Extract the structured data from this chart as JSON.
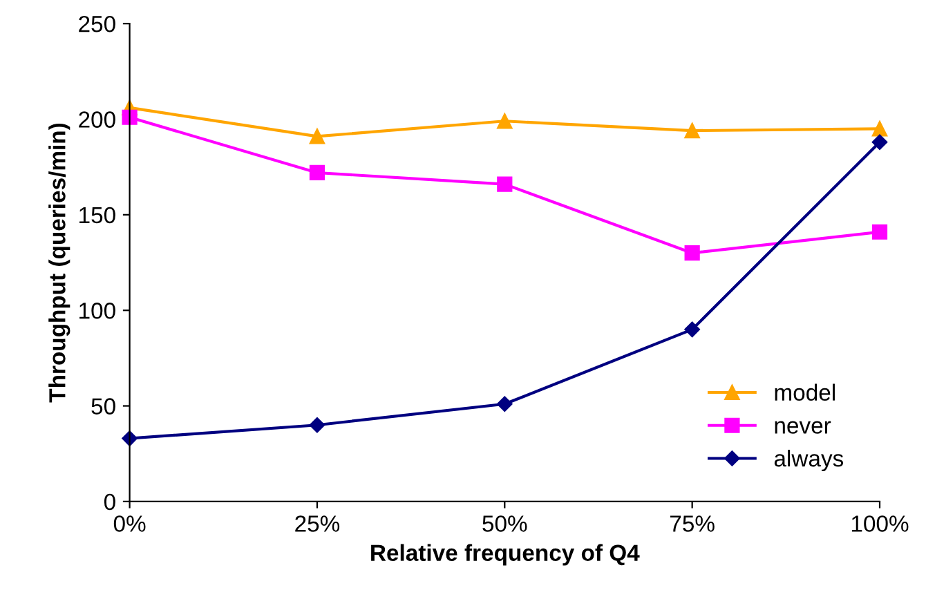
{
  "chart_data": {
    "type": "line",
    "xlabel": "Relative frequency of Q4",
    "ylabel": "Throughput (queries/min)",
    "categories": [
      "0%",
      "25%",
      "50%",
      "75%",
      "100%"
    ],
    "ylim": [
      0,
      250
    ],
    "yticks": [
      0,
      50,
      100,
      150,
      200,
      250
    ],
    "grid": false,
    "legend": "bottom right",
    "series": [
      {
        "name": "model",
        "color": "#ffa500",
        "marker": "triangle",
        "values": [
          206,
          191,
          199,
          194,
          195
        ]
      },
      {
        "name": "never",
        "color": "#ff00ff",
        "marker": "square",
        "values": [
          201,
          172,
          166,
          130,
          141
        ]
      },
      {
        "name": "always",
        "color": "#000080",
        "marker": "diamond",
        "values": [
          33,
          40,
          51,
          90,
          188
        ]
      }
    ]
  }
}
